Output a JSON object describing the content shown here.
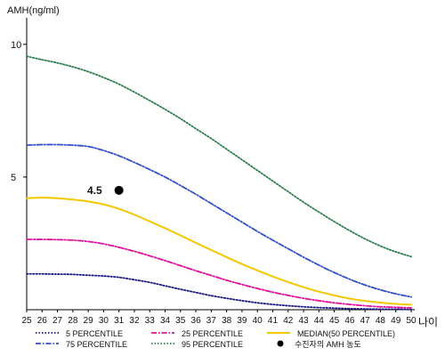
{
  "chart_data": {
    "type": "line",
    "y_unit_label": "AMH(ng/ml)",
    "x_unit_label": "나이",
    "xlim": [
      25,
      50
    ],
    "ylim": [
      0,
      11
    ],
    "x_ticks": [
      25,
      26,
      27,
      28,
      29,
      30,
      31,
      32,
      33,
      34,
      35,
      36,
      37,
      38,
      39,
      40,
      41,
      42,
      43,
      44,
      45,
      46,
      47,
      48,
      49,
      50
    ],
    "y_ticks": [
      5,
      10
    ],
    "x": [
      25,
      26,
      27,
      28,
      29,
      30,
      31,
      32,
      33,
      34,
      35,
      36,
      37,
      38,
      39,
      40,
      41,
      42,
      43,
      44,
      45,
      46,
      47,
      48,
      49,
      50
    ],
    "series": [
      {
        "name": "5 PERCENTILE",
        "color": "#1a1a80",
        "style": "dotted",
        "values": [
          1.35,
          1.35,
          1.34,
          1.33,
          1.3,
          1.27,
          1.22,
          1.13,
          1.03,
          0.9,
          0.77,
          0.65,
          0.53,
          0.43,
          0.34,
          0.26,
          0.2,
          0.15,
          0.11,
          0.08,
          0.06,
          0.04,
          0.03,
          0.02,
          0.02,
          0.01
        ]
      },
      {
        "name": "25 PERCENTILE",
        "color": "#e0109a",
        "style": "dashdot",
        "values": [
          2.65,
          2.65,
          2.64,
          2.62,
          2.57,
          2.48,
          2.35,
          2.2,
          2.03,
          1.85,
          1.66,
          1.47,
          1.29,
          1.11,
          0.95,
          0.8,
          0.66,
          0.54,
          0.43,
          0.34,
          0.26,
          0.2,
          0.15,
          0.11,
          0.09,
          0.07
        ]
      },
      {
        "name": "MEDIAN(50 PERCENTILE)",
        "color": "#f2c800",
        "style": "solid",
        "values": [
          4.2,
          4.22,
          4.2,
          4.15,
          4.08,
          3.97,
          3.8,
          3.58,
          3.33,
          3.07,
          2.8,
          2.52,
          2.25,
          1.98,
          1.72,
          1.48,
          1.25,
          1.04,
          0.85,
          0.68,
          0.54,
          0.42,
          0.33,
          0.27,
          0.22,
          0.19
        ]
      },
      {
        "name": "75 PERCENTILE",
        "color": "#3050c8",
        "style": "dashdot",
        "values": [
          6.2,
          6.22,
          6.22,
          6.2,
          6.15,
          6.0,
          5.8,
          5.55,
          5.28,
          5.0,
          4.68,
          4.35,
          4.0,
          3.65,
          3.3,
          2.95,
          2.62,
          2.3,
          1.98,
          1.68,
          1.4,
          1.15,
          0.93,
          0.75,
          0.6,
          0.48
        ]
      },
      {
        "name": "95 PERCENTILE",
        "color": "#2e7d4f",
        "style": "dotted",
        "values": [
          9.55,
          9.42,
          9.3,
          9.15,
          8.97,
          8.75,
          8.5,
          8.2,
          7.88,
          7.55,
          7.2,
          6.82,
          6.45,
          6.05,
          5.65,
          5.25,
          4.85,
          4.45,
          4.05,
          3.68,
          3.32,
          2.98,
          2.67,
          2.4,
          2.18,
          2.0
        ]
      }
    ],
    "patient_point": {
      "x": 31,
      "y": 4.5,
      "label": "4.5",
      "legend_label": "수진자의 AMH 농도",
      "color": "#000000"
    },
    "legend_placement": "bottom",
    "grid": false
  }
}
